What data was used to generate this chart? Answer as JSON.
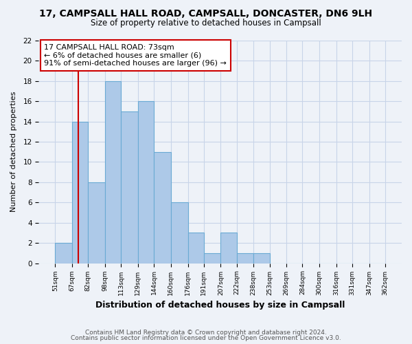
{
  "title1": "17, CAMPSALL HALL ROAD, CAMPSALL, DONCASTER, DN6 9LH",
  "title2": "Size of property relative to detached houses in Campsall",
  "xlabel": "Distribution of detached houses by size in Campsall",
  "ylabel": "Number of detached properties",
  "bin_edges": [
    51,
    67,
    82,
    98,
    113,
    129,
    144,
    160,
    176,
    191,
    207,
    222,
    238,
    253,
    269,
    284,
    300,
    316,
    331,
    347,
    362
  ],
  "bar_heights": [
    2,
    14,
    8,
    18,
    15,
    16,
    11,
    6,
    3,
    1,
    3,
    1,
    1,
    0,
    0,
    0,
    0,
    0,
    0,
    0
  ],
  "bar_color": "#adc9e8",
  "bar_edgecolor": "#6aaad4",
  "grid_color": "#c8d4e8",
  "vline_x": 73,
  "vline_color": "#cc0000",
  "annotation_line1": "17 CAMPSALL HALL ROAD: 73sqm",
  "annotation_line2": "← 6% of detached houses are smaller (6)",
  "annotation_line3": "91% of semi-detached houses are larger (96) →",
  "annotation_box_edgecolor": "#cc0000",
  "annotation_box_facecolor": "#ffffff",
  "ylim": [
    0,
    22
  ],
  "yticks": [
    0,
    2,
    4,
    6,
    8,
    10,
    12,
    14,
    16,
    18,
    20,
    22
  ],
  "footer1": "Contains HM Land Registry data © Crown copyright and database right 2024.",
  "footer2": "Contains public sector information licensed under the Open Government Licence v3.0.",
  "background_color": "#eef2f8"
}
